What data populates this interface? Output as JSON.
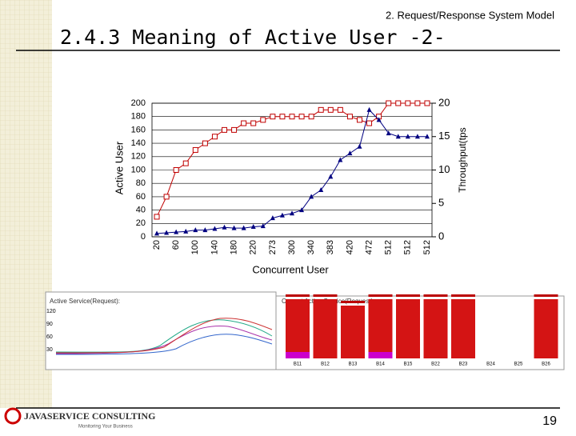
{
  "header": "2. Request/Response System Model",
  "title": "2.4.3 Meaning of Active User -2-",
  "chart_data": {
    "type": "line",
    "categories": [
      "20",
      null,
      "60",
      null,
      "100",
      null,
      "140",
      null,
      "180",
      null,
      "220",
      null,
      "273",
      null,
      "300",
      null,
      "340",
      null,
      "383",
      null,
      "420",
      null,
      "472",
      null,
      "512",
      null,
      "512",
      null,
      "512"
    ],
    "series": [
      {
        "color": "#c00000",
        "marker": "square",
        "axis": "y2",
        "values": [
          3,
          6,
          10,
          11,
          13,
          14,
          15,
          16,
          16,
          17,
          17,
          17.5,
          18,
          18,
          18,
          18,
          18,
          19,
          19,
          19,
          18,
          17.5,
          17,
          18,
          20,
          20,
          20,
          20,
          20
        ]
      },
      {
        "color": "#000080",
        "marker": "triangle",
        "values": [
          5,
          6,
          7,
          8,
          10,
          10,
          12,
          14,
          13,
          13,
          15,
          16,
          28,
          32,
          35,
          40,
          60,
          70,
          90,
          115,
          125,
          135,
          190,
          175,
          155,
          150,
          150,
          150,
          150
        ]
      }
    ],
    "ylim": [
      0,
      200
    ],
    "yticks": [
      0,
      20,
      40,
      60,
      80,
      100,
      120,
      140,
      160,
      180,
      200
    ],
    "y2lim": [
      0,
      20
    ],
    "y2ticks": [
      0,
      5,
      10,
      15,
      20
    ],
    "y_label": "Active User",
    "y2_label": "Throughput(tps",
    "x_label": "Concurrent User",
    "grid": true
  },
  "screenshot": {
    "left_title": "Active Service(Request):",
    "left_ticks": [
      "120",
      "90",
      "60",
      "30"
    ],
    "right_title": "Current Active Service(Request):",
    "bar_labels": [
      "B11",
      "B12",
      "B13",
      "B14",
      "B15",
      "B22",
      "B23",
      "B24",
      "B25",
      "B26"
    ]
  },
  "footer": {
    "brand": "JAVASERVICE CONSULTING",
    "tagline": "Monitoring Your Business",
    "page": "19"
  }
}
